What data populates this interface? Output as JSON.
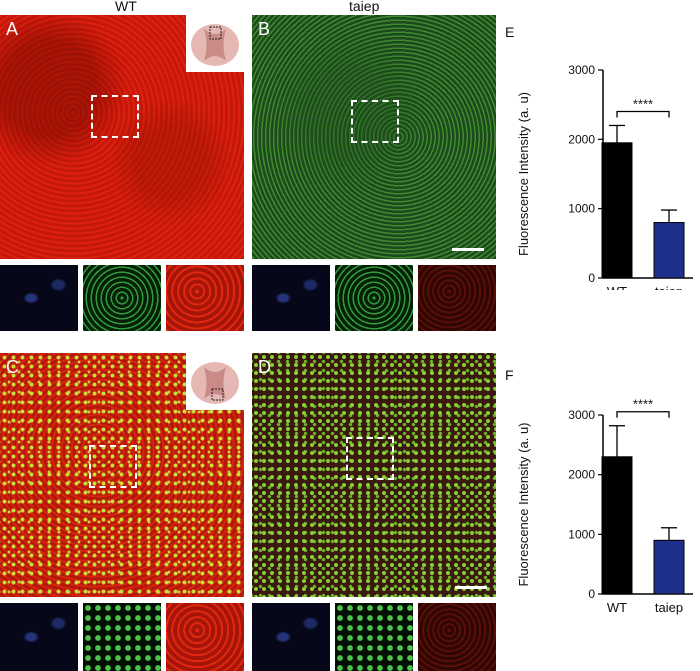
{
  "figure": {
    "column_titles": [
      "WT",
      "taiep"
    ],
    "panel_letters": {
      "A": "A",
      "B": "B",
      "C": "C",
      "D": "D",
      "E": "E",
      "F": "F"
    }
  },
  "colors": {
    "wt_bar": "#000000",
    "taiep_bar": "#1f2f8c",
    "annotation": "#111111"
  },
  "chart_data": [
    {
      "type": "bar",
      "panel": "E",
      "categories": [
        "WT",
        "taiep"
      ],
      "values": [
        1950,
        800
      ],
      "errors": [
        250,
        180
      ],
      "ylabel": "Fluorescence Intensity (a. u)",
      "ylim": [
        0,
        3000
      ],
      "yticks": [
        0,
        1000,
        2000,
        3000
      ],
      "significance": "****"
    },
    {
      "type": "bar",
      "panel": "F",
      "categories": [
        "WT",
        "taiep"
      ],
      "values": [
        2300,
        900
      ],
      "errors": [
        520,
        210
      ],
      "ylabel": "Fluorescence Intensity (a. u)",
      "ylim": [
        0,
        3000
      ],
      "yticks": [
        0,
        1000,
        2000,
        3000
      ],
      "significance": "****"
    }
  ]
}
